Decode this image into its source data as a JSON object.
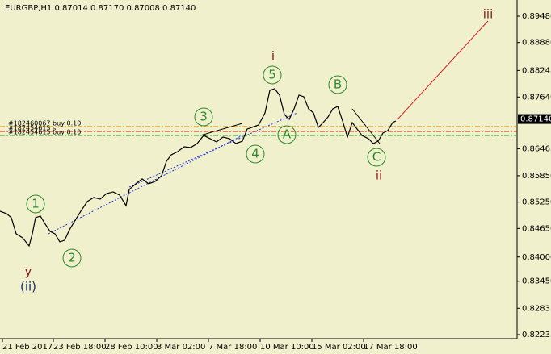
{
  "chart_data": {
    "type": "line",
    "title": "EURGBP,H1  0.87014 0.87170 0.87008 0.87140",
    "series": [
      {
        "name": "EURGBP",
        "color": "#000000",
        "x": [
          0,
          8,
          14,
          20,
          28,
          36,
          40,
          44,
          50,
          56,
          62,
          68,
          74,
          80,
          86,
          92,
          100,
          108,
          116,
          124,
          132,
          140,
          148,
          156,
          160,
          168,
          176,
          184,
          192,
          200,
          206,
          212,
          220,
          228,
          236,
          244,
          252,
          260,
          268,
          276,
          284,
          292,
          300,
          306,
          312,
          320,
          328,
          334,
          340,
          346,
          352,
          358,
          364,
          370,
          376,
          382,
          388,
          394,
          400,
          406,
          412,
          418,
          424,
          430,
          436,
          442,
          448,
          456,
          462,
          468,
          474,
          480,
          486,
          490
        ],
        "values": [
          0.85042,
          0.84987,
          0.84895,
          0.84528,
          0.84437,
          0.84253,
          0.84528,
          0.84895,
          0.84932,
          0.84748,
          0.84583,
          0.84528,
          0.84345,
          0.84382,
          0.8462,
          0.84803,
          0.85042,
          0.85262,
          0.85354,
          0.85317,
          0.85445,
          0.85482,
          0.85409,
          0.8517,
          0.85537,
          0.85665,
          0.85776,
          0.85665,
          0.8572,
          0.85849,
          0.86179,
          0.86326,
          0.86399,
          0.86509,
          0.86491,
          0.86582,
          0.86766,
          0.86693,
          0.86619,
          0.86729,
          0.86693,
          0.86582,
          0.86637,
          0.86913,
          0.86949,
          0.87004,
          0.87279,
          0.87793,
          0.8783,
          0.87683,
          0.87243,
          0.87133,
          0.87371,
          0.87683,
          0.87646,
          0.87371,
          0.87279,
          0.86949,
          0.87059,
          0.87188,
          0.87371,
          0.87426,
          0.87096,
          0.86729,
          0.87059,
          0.86913,
          0.86766,
          0.86693,
          0.86582,
          0.86637,
          0.86821,
          0.86876,
          0.87059,
          0.87096
        ]
      }
    ],
    "xlim": [
      0,
      640
    ],
    "xticks": [
      {
        "value": 3,
        "label": "21 Feb 2017"
      },
      {
        "value": 66,
        "label": "23 Feb 18:00"
      },
      {
        "value": 130,
        "label": "28 Feb 10:00"
      },
      {
        "value": 194,
        "label": "3 Mar 02:00"
      },
      {
        "value": 258,
        "label": "7 Mar 18:00"
      },
      {
        "value": 322,
        "label": "10 Mar 10:00"
      },
      {
        "value": 386,
        "label": "15 Mar 02:00"
      },
      {
        "value": 450,
        "label": "17 Mar 18:00"
      }
    ],
    "ylim": [
      0.82143,
      0.89847
    ],
    "yticks": [
      {
        "value": 0.8948,
        "label": "0.89480"
      },
      {
        "value": 0.8888,
        "label": "0.88880"
      },
      0.88245,
      {
        "value": 0.8764,
        "label": "0.87640"
      },
      0.86465,
      {
        "value": 0.8585,
        "label": "0.85850"
      },
      {
        "value": 0.8525,
        "label": "0.85250"
      },
      {
        "value": 0.8465,
        "label": "0.84650"
      },
      {
        "value": 0.84,
        "label": "0.84000"
      },
      {
        "value": 0.8345,
        "label": "0.83450"
      },
      0.82835,
      0.82235
    ],
    "current_price": {
      "value": 0.8714,
      "label": "0.87140"
    },
    "orders": [
      {
        "label": "#182460067 buy 0.10",
        "price": 0.86968,
        "color": "#d08000"
      },
      {
        "label": "#182454615 sl",
        "price": 0.86858,
        "color": "#d02000"
      },
      {
        "label": "#182454615 buy 0.10",
        "price": 0.86766,
        "color": "#2a9a2a"
      }
    ],
    "annotations": [
      "1",
      "2",
      "3",
      "4",
      "5",
      "A",
      "B",
      "C",
      "i",
      "ii",
      "iii",
      "y",
      "(ii)"
    ]
  }
}
